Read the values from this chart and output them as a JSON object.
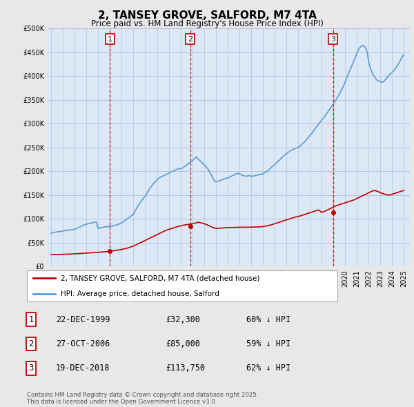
{
  "title": "2, TANSEY GROVE, SALFORD, M7 4TA",
  "subtitle": "Price paid vs. HM Land Registry's House Price Index (HPI)",
  "background_color": "#e8e8e8",
  "plot_bg_color": "#dce8f5",
  "ylim": [
    0,
    500000
  ],
  "yticks": [
    0,
    50000,
    100000,
    150000,
    200000,
    250000,
    300000,
    350000,
    400000,
    450000,
    500000
  ],
  "xlim": [
    1995.0,
    2025.5
  ],
  "sale_dates_num": [
    2000.0,
    2006.83,
    2018.97
  ],
  "sale_prices": [
    32300,
    85000,
    113750
  ],
  "sale_labels": [
    "1",
    "2",
    "3"
  ],
  "legend_entries": [
    "2, TANSEY GROVE, SALFORD, M7 4TA (detached house)",
    "HPI: Average price, detached house, Salford"
  ],
  "table_rows": [
    [
      "1",
      "22-DEC-1999",
      "£32,300",
      "60% ↓ HPI"
    ],
    [
      "2",
      "27-OCT-2006",
      "£85,000",
      "59% ↓ HPI"
    ],
    [
      "3",
      "19-DEC-2018",
      "£113,750",
      "62% ↓ HPI"
    ]
  ],
  "footer": "Contains HM Land Registry data © Crown copyright and database right 2025.\nThis data is licensed under the Open Government Licence v3.0.",
  "hpi_color": "#5b9bd5",
  "price_color": "#c00000",
  "marker_color": "#c00000",
  "vline_color": "#c00000",
  "grid_color": "#b0c4d8",
  "years_hpi": [
    1995.0,
    1995.08,
    1995.17,
    1995.25,
    1995.33,
    1995.42,
    1995.5,
    1995.58,
    1995.67,
    1995.75,
    1995.83,
    1995.92,
    1996.0,
    1996.08,
    1996.17,
    1996.25,
    1996.33,
    1996.42,
    1996.5,
    1996.58,
    1996.67,
    1996.75,
    1996.83,
    1996.92,
    1997.0,
    1997.17,
    1997.33,
    1997.5,
    1997.67,
    1997.83,
    1998.0,
    1998.17,
    1998.33,
    1998.5,
    1998.67,
    1998.83,
    1999.0,
    1999.17,
    1999.33,
    1999.5,
    1999.67,
    1999.83,
    2000.0,
    2000.17,
    2000.33,
    2000.5,
    2000.67,
    2000.83,
    2001.0,
    2001.17,
    2001.33,
    2001.5,
    2001.67,
    2001.83,
    2002.0,
    2002.17,
    2002.33,
    2002.5,
    2002.67,
    2002.83,
    2003.0,
    2003.17,
    2003.33,
    2003.5,
    2003.67,
    2003.83,
    2004.0,
    2004.17,
    2004.33,
    2004.5,
    2004.67,
    2004.83,
    2005.0,
    2005.17,
    2005.33,
    2005.5,
    2005.67,
    2005.83,
    2006.0,
    2006.17,
    2006.33,
    2006.5,
    2006.67,
    2006.83,
    2007.0,
    2007.17,
    2007.33,
    2007.5,
    2007.67,
    2007.83,
    2008.0,
    2008.17,
    2008.33,
    2008.5,
    2008.67,
    2008.83,
    2009.0,
    2009.17,
    2009.33,
    2009.5,
    2009.67,
    2009.83,
    2010.0,
    2010.17,
    2010.33,
    2010.5,
    2010.67,
    2010.83,
    2011.0,
    2011.17,
    2011.33,
    2011.5,
    2011.67,
    2011.83,
    2012.0,
    2012.17,
    2012.33,
    2012.5,
    2012.67,
    2012.83,
    2013.0,
    2013.17,
    2013.33,
    2013.5,
    2013.67,
    2013.83,
    2014.0,
    2014.17,
    2014.33,
    2014.5,
    2014.67,
    2014.83,
    2015.0,
    2015.17,
    2015.33,
    2015.5,
    2015.67,
    2015.83,
    2016.0,
    2016.17,
    2016.33,
    2016.5,
    2016.67,
    2016.83,
    2017.0,
    2017.17,
    2017.33,
    2017.5,
    2017.67,
    2017.83,
    2018.0,
    2018.17,
    2018.33,
    2018.5,
    2018.67,
    2018.83,
    2019.0,
    2019.17,
    2019.33,
    2019.5,
    2019.67,
    2019.83,
    2020.0,
    2020.17,
    2020.33,
    2020.5,
    2020.67,
    2020.83,
    2021.0,
    2021.17,
    2021.33,
    2021.5,
    2021.67,
    2021.83,
    2022.0,
    2022.17,
    2022.33,
    2022.5,
    2022.67,
    2022.83,
    2023.0,
    2023.17,
    2023.33,
    2023.5,
    2023.67,
    2023.83,
    2024.0,
    2024.17,
    2024.33,
    2024.5,
    2024.67,
    2024.83,
    2025.0
  ],
  "hpi_values": [
    70000,
    70500,
    71000,
    71500,
    72000,
    72500,
    73000,
    73200,
    73400,
    73600,
    73800,
    74000,
    74500,
    75000,
    75500,
    76000,
    76200,
    76400,
    76600,
    76800,
    77000,
    77200,
    77500,
    78000,
    78500,
    80000,
    82000,
    84000,
    86000,
    88000,
    89000,
    90000,
    91000,
    92000,
    93000,
    94000,
    80000,
    81000,
    82000,
    83000,
    83500,
    84000,
    84500,
    85000,
    86000,
    87000,
    88500,
    90000,
    92000,
    95000,
    98000,
    101000,
    104000,
    107000,
    110000,
    118000,
    125000,
    132000,
    138000,
    143000,
    148000,
    155000,
    162000,
    168000,
    173000,
    178000,
    182000,
    186000,
    188000,
    190000,
    192000,
    194000,
    196000,
    198000,
    200000,
    202000,
    204000,
    206000,
    205000,
    207000,
    210000,
    213000,
    216000,
    219000,
    222000,
    226000,
    230000,
    226000,
    222000,
    218000,
    214000,
    210000,
    205000,
    198000,
    190000,
    182000,
    178000,
    179000,
    180000,
    182000,
    184000,
    185000,
    186000,
    188000,
    190000,
    192000,
    194000,
    196000,
    195000,
    193000,
    191000,
    190000,
    190000,
    191000,
    190000,
    190000,
    191000,
    192000,
    193000,
    194000,
    195000,
    197000,
    200000,
    203000,
    207000,
    211000,
    214000,
    218000,
    222000,
    226000,
    230000,
    234000,
    237000,
    240000,
    243000,
    245000,
    247000,
    249000,
    250000,
    253000,
    257000,
    261000,
    265000,
    270000,
    275000,
    280000,
    286000,
    292000,
    297000,
    302000,
    307000,
    312000,
    318000,
    324000,
    330000,
    336000,
    342000,
    348000,
    355000,
    362000,
    370000,
    378000,
    388000,
    398000,
    408000,
    418000,
    428000,
    438000,
    448000,
    458000,
    462000,
    465000,
    461000,
    455000,
    430000,
    415000,
    405000,
    398000,
    392000,
    390000,
    388000,
    387000,
    390000,
    395000,
    400000,
    405000,
    408000,
    412000,
    418000,
    425000,
    432000,
    440000,
    445000
  ],
  "years_price": [
    1995.0,
    1995.25,
    1995.5,
    1995.75,
    1996.0,
    1996.25,
    1996.5,
    1996.75,
    1997.0,
    1997.25,
    1997.5,
    1997.75,
    1998.0,
    1998.25,
    1998.5,
    1998.75,
    1999.0,
    1999.25,
    1999.5,
    1999.75,
    2000.0,
    2000.25,
    2000.5,
    2000.75,
    2001.0,
    2001.25,
    2001.5,
    2001.75,
    2002.0,
    2002.25,
    2002.5,
    2002.75,
    2003.0,
    2003.25,
    2003.5,
    2003.75,
    2004.0,
    2004.25,
    2004.5,
    2004.75,
    2005.0,
    2005.25,
    2005.5,
    2005.75,
    2006.0,
    2006.25,
    2006.5,
    2006.75,
    2007.0,
    2007.25,
    2007.5,
    2007.75,
    2008.0,
    2008.25,
    2008.5,
    2008.75,
    2009.0,
    2009.25,
    2009.5,
    2009.75,
    2010.0,
    2010.25,
    2010.5,
    2010.75,
    2011.0,
    2011.25,
    2011.5,
    2011.75,
    2012.0,
    2012.25,
    2012.5,
    2012.75,
    2013.0,
    2013.25,
    2013.5,
    2013.75,
    2014.0,
    2014.25,
    2014.5,
    2014.75,
    2015.0,
    2015.25,
    2015.5,
    2015.75,
    2016.0,
    2016.25,
    2016.5,
    2016.75,
    2017.0,
    2017.25,
    2017.5,
    2017.75,
    2018.0,
    2018.25,
    2018.5,
    2018.75,
    2019.0,
    2019.25,
    2019.5,
    2019.75,
    2020.0,
    2020.25,
    2020.5,
    2020.75,
    2021.0,
    2021.25,
    2021.5,
    2021.75,
    2022.0,
    2022.25,
    2022.5,
    2022.75,
    2023.0,
    2023.25,
    2023.5,
    2023.75,
    2024.0,
    2024.25,
    2024.5,
    2024.75,
    2025.0
  ],
  "price_values": [
    25000,
    25200,
    25400,
    25600,
    25800,
    26000,
    26200,
    26500,
    26800,
    27200,
    27600,
    28000,
    28400,
    28800,
    29200,
    29600,
    30000,
    30500,
    31000,
    31500,
    32300,
    33000,
    34000,
    35000,
    36000,
    37500,
    39000,
    41000,
    43000,
    46000,
    49000,
    52000,
    55000,
    58000,
    61000,
    64000,
    67000,
    70000,
    73000,
    76000,
    78000,
    80000,
    82000,
    84000,
    85500,
    87000,
    88000,
    89000,
    90000,
    91500,
    93000,
    92000,
    90000,
    88000,
    85000,
    82000,
    80000,
    80500,
    81000,
    81500,
    81800,
    82000,
    82200,
    82400,
    82500,
    82600,
    82700,
    82800,
    82900,
    83000,
    83200,
    83400,
    84000,
    85000,
    86500,
    88000,
    90000,
    92000,
    94000,
    96000,
    98000,
    100000,
    102000,
    104000,
    105000,
    107000,
    109000,
    111000,
    113000,
    115000,
    117000,
    119000,
    113750,
    116000,
    119000,
    122000,
    125000,
    128000,
    130000,
    132000,
    134000,
    136000,
    138000,
    140000,
    143000,
    146000,
    149000,
    152000,
    155000,
    158000,
    160000,
    158000,
    155000,
    153000,
    151000,
    150000,
    152000,
    154000,
    156000,
    158000,
    160000
  ]
}
